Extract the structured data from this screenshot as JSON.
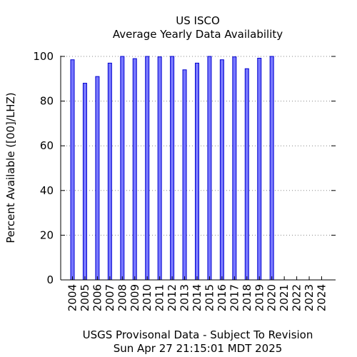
{
  "chart_data": {
    "type": "bar",
    "title": "US ISCO",
    "subtitle": "Average Yearly Data Availability",
    "ylabel": "Percent Available ([00]/LHZ)",
    "xlabel": "",
    "footer_line1": "USGS Provisonal Data - Subject To Revision",
    "footer_line2": "Sun Apr 27 21:15:01 MDT 2025",
    "ylim": [
      0,
      100
    ],
    "yticks": [
      0,
      20,
      40,
      60,
      80,
      100
    ],
    "grid": true,
    "categories": [
      "2004",
      "2005",
      "2006",
      "2007",
      "2008",
      "2009",
      "2010",
      "2011",
      "2012",
      "2013",
      "2014",
      "2015",
      "2016",
      "2017",
      "2018",
      "2019",
      "2020",
      "2021",
      "2022",
      "2023",
      "2024"
    ],
    "values": [
      98.5,
      88,
      91,
      97,
      100,
      99,
      100,
      99.8,
      100,
      94,
      97,
      100,
      98.5,
      99.8,
      94.5,
      99.2,
      100,
      null,
      null,
      null,
      null
    ],
    "bar_fill": "#7777ff",
    "bar_stroke": "#0000cc",
    "grid_color": "#888888"
  }
}
